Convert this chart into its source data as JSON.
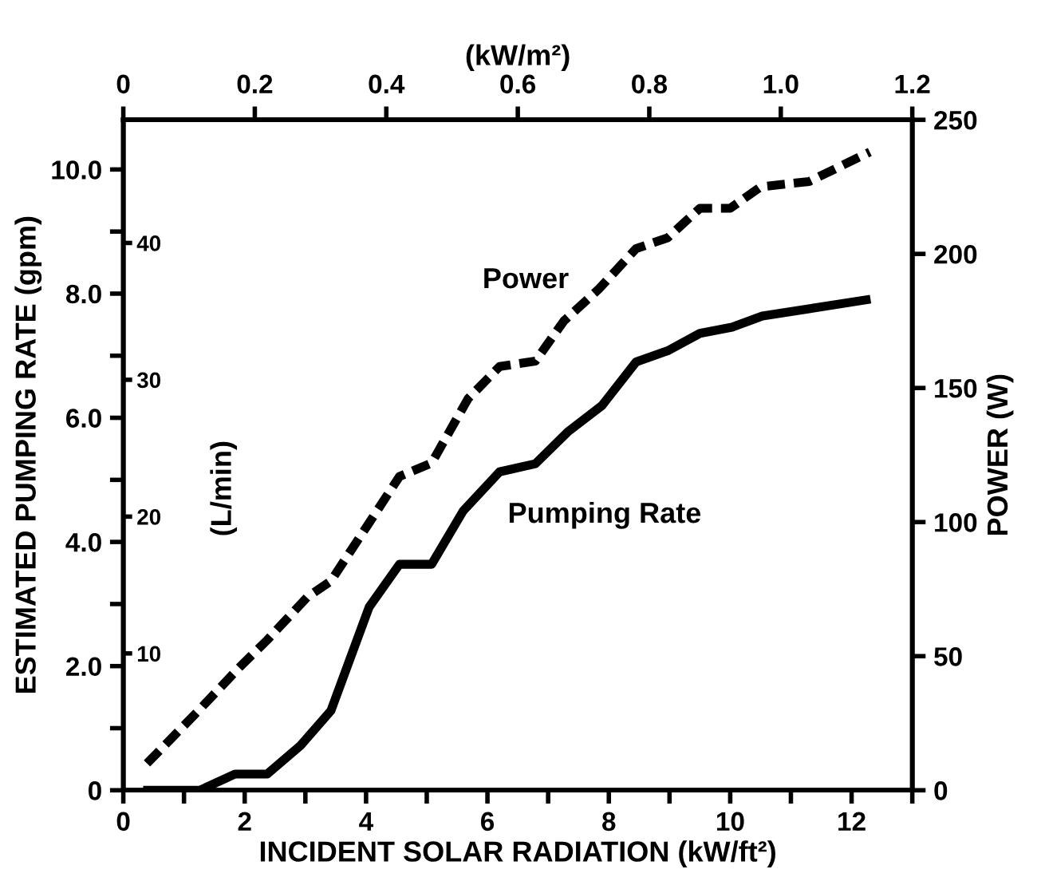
{
  "chart_data": {
    "type": "line",
    "xlabel": "INCIDENT SOLAR RADIATION (kW/ft²)",
    "ylabel": "ESTIMATED PUMPING RATE (gpm)",
    "y2label": "POWER (W)",
    "y3label": "(L/min)",
    "x2label": "(kW/m²)",
    "xlim": [
      0,
      13
    ],
    "xticks": [
      0,
      {
        "value": 1,
        "label": null
      },
      2,
      {
        "value": 3,
        "label": null
      },
      4,
      {
        "value": 5,
        "label": null
      },
      6,
      {
        "value": 7,
        "label": null
      },
      8,
      {
        "value": 9,
        "label": null
      },
      10,
      {
        "value": 11,
        "label": null
      },
      12,
      {
        "value": 13,
        "label": null
      }
    ],
    "ylim": [
      0,
      10.8
    ],
    "yticks": [
      0,
      {
        "value": 1,
        "label": null
      },
      {
        "value": 2,
        "label": "2.0"
      },
      {
        "value": 3,
        "label": null
      },
      {
        "value": 4,
        "label": "4.0"
      },
      {
        "value": 5,
        "label": null
      },
      {
        "value": 6,
        "label": "6.0"
      },
      {
        "value": 7,
        "label": null
      },
      {
        "value": 8,
        "label": "8.0"
      },
      {
        "value": 9,
        "label": null
      },
      {
        "value": 10,
        "label": "10.0"
      }
    ],
    "y2lim": [
      0,
      250
    ],
    "y2ticks": [
      0,
      50,
      100,
      150,
      200,
      250
    ],
    "y3lim": [
      0,
      49
    ],
    "y3ticks": [
      10,
      20,
      30,
      40
    ],
    "x2lim": [
      0,
      1.2
    ],
    "x2ticks": [
      0,
      0.2,
      0.4,
      0.6,
      0.8,
      {
        "value": 1.0,
        "label": "1.0"
      },
      1.2
    ],
    "grid": false,
    "legend": false,
    "series": [
      {
        "name": "Pumping Rate",
        "color": "#000000",
        "line_style": "solid",
        "x": [
          0.4,
          1.26,
          1.84,
          2.37,
          2.92,
          3.42,
          4.05,
          4.55,
          5.08,
          5.6,
          6.2,
          6.79,
          7.32,
          7.89,
          8.45,
          8.97,
          9.5,
          10.03,
          10.53,
          12.24
        ],
        "values": [
          0,
          0,
          0.26,
          0.26,
          0.72,
          1.28,
          2.95,
          3.64,
          3.64,
          4.5,
          5.13,
          5.26,
          5.77,
          6.2,
          6.9,
          7.08,
          7.36,
          7.46,
          7.64,
          7.9
        ]
      },
      {
        "name": "Power",
        "color": "#000000",
        "line_style": "dashed",
        "axis": "y2",
        "x": [
          0.39,
          1.21,
          1.92,
          2.37,
          3.03,
          3.42,
          4.03,
          4.55,
          5.08,
          5.68,
          6.2,
          6.79,
          7.26,
          7.84,
          8.45,
          8.97,
          9.5,
          10.0,
          10.5,
          11.3,
          12.3
        ],
        "values": [
          10,
          29,
          46,
          56,
          72,
          78,
          99,
          117,
          122,
          146,
          158,
          160,
          175,
          187,
          202,
          206,
          217,
          217,
          225,
          227,
          238
        ]
      }
    ]
  }
}
